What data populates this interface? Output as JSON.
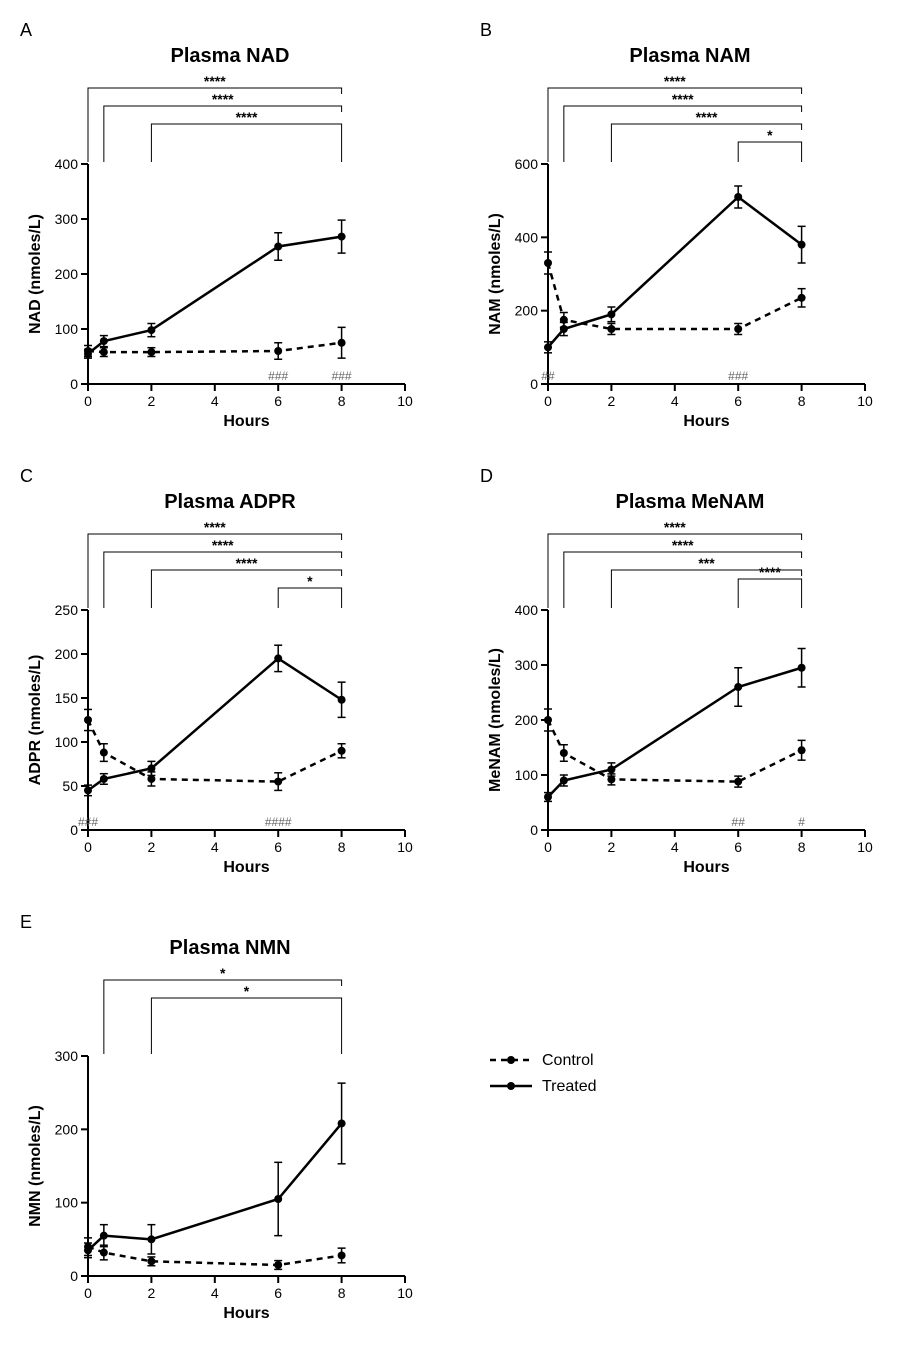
{
  "figure": {
    "background_color": "#ffffff",
    "panel_font": {
      "title_size": 20,
      "title_weight": 700,
      "letter_size": 18,
      "axis_label_size": 16,
      "tick_size": 14
    },
    "xlabel": "Hours",
    "xlim": [
      0,
      10
    ],
    "xticks": [
      0,
      2,
      4,
      6,
      8,
      10
    ],
    "xvals": [
      0,
      0.5,
      2,
      6,
      8
    ],
    "legend": {
      "items": [
        {
          "label": "Control",
          "style": "dashed",
          "marker": "circle"
        },
        {
          "label": "Treated",
          "style": "solid",
          "marker": "circle"
        }
      ]
    },
    "colors": {
      "line": "#000000",
      "hash": "#666666"
    },
    "panels": [
      {
        "id": "A",
        "title": "Plasma NAD",
        "ylabel": "NAD (nmoles/L)",
        "ylim": [
          0,
          400
        ],
        "yticks": [
          0,
          100,
          200,
          300,
          400
        ],
        "control": {
          "y": [
            60,
            58,
            58,
            60,
            75
          ],
          "err": [
            10,
            8,
            8,
            15,
            28
          ]
        },
        "treated": {
          "y": [
            55,
            78,
            98,
            250,
            268
          ],
          "err": [
            8,
            10,
            12,
            25,
            30
          ]
        },
        "sig_brackets": [
          {
            "from_x": 0,
            "to_x": 8,
            "label": "****",
            "level": 0
          },
          {
            "from_x": 0.5,
            "to_x": 8,
            "label": "****",
            "level": 1
          },
          {
            "from_x": 2,
            "to_x": 8,
            "label": "****",
            "level": 2
          }
        ],
        "hash_marks": [
          {
            "x": 6,
            "text": "###"
          },
          {
            "x": 8,
            "text": "###"
          }
        ]
      },
      {
        "id": "B",
        "title": "Plasma NAM",
        "ylabel": "NAM (nmoles/L)",
        "ylim": [
          0,
          600
        ],
        "yticks": [
          0,
          200,
          400,
          600
        ],
        "control": {
          "y": [
            330,
            175,
            150,
            150,
            235
          ],
          "err": [
            30,
            20,
            15,
            15,
            25
          ]
        },
        "treated": {
          "y": [
            100,
            150,
            190,
            510,
            380
          ],
          "err": [
            15,
            18,
            20,
            30,
            50
          ]
        },
        "sig_brackets": [
          {
            "from_x": 0,
            "to_x": 8,
            "label": "****",
            "level": 0
          },
          {
            "from_x": 0.5,
            "to_x": 8,
            "label": "****",
            "level": 1
          },
          {
            "from_x": 2,
            "to_x": 8,
            "label": "****",
            "level": 2
          },
          {
            "from_x": 6,
            "to_x": 8,
            "label": "*",
            "level": 3
          }
        ],
        "hash_marks": [
          {
            "x": 0,
            "text": "##"
          },
          {
            "x": 6,
            "text": "###"
          }
        ]
      },
      {
        "id": "C",
        "title": "Plasma ADPR",
        "ylabel": "ADPR (nmoles/L)",
        "ylim": [
          0,
          250
        ],
        "yticks": [
          0,
          50,
          100,
          150,
          200,
          250
        ],
        "control": {
          "y": [
            125,
            88,
            58,
            55,
            90
          ],
          "err": [
            12,
            10,
            8,
            10,
            8
          ]
        },
        "treated": {
          "y": [
            45,
            58,
            70,
            195,
            148
          ],
          "err": [
            6,
            6,
            8,
            15,
            20
          ]
        },
        "sig_brackets": [
          {
            "from_x": 0,
            "to_x": 8,
            "label": "****",
            "level": 0
          },
          {
            "from_x": 0.5,
            "to_x": 8,
            "label": "****",
            "level": 1
          },
          {
            "from_x": 2,
            "to_x": 8,
            "label": "****",
            "level": 2
          },
          {
            "from_x": 6,
            "to_x": 8,
            "label": "*",
            "level": 3
          }
        ],
        "hash_marks": [
          {
            "x": 0,
            "text": "###"
          },
          {
            "x": 6,
            "text": "####"
          }
        ]
      },
      {
        "id": "D",
        "title": "Plasma MeNAM",
        "ylabel": "MeNAM (nmoles/L)",
        "ylim": [
          0,
          400
        ],
        "yticks": [
          0,
          100,
          200,
          300,
          400
        ],
        "control": {
          "y": [
            200,
            140,
            92,
            88,
            145
          ],
          "err": [
            20,
            15,
            10,
            10,
            18
          ]
        },
        "treated": {
          "y": [
            60,
            90,
            110,
            260,
            295
          ],
          "err": [
            8,
            10,
            12,
            35,
            35
          ]
        },
        "sig_brackets": [
          {
            "from_x": 0,
            "to_x": 8,
            "label": "****",
            "level": 0
          },
          {
            "from_x": 0.5,
            "to_x": 8,
            "label": "****",
            "level": 1
          },
          {
            "from_x": 2,
            "to_x": 8,
            "label": "***",
            "level": 2
          },
          {
            "from_x": 6,
            "to_x": 8,
            "label": "****",
            "level": 2.5
          }
        ],
        "hash_marks": [
          {
            "x": 6,
            "text": "##"
          },
          {
            "x": 8,
            "text": "#"
          }
        ]
      },
      {
        "id": "E",
        "title": "Plasma NMN",
        "ylabel": "NMN (nmoles/L)",
        "ylim": [
          0,
          300
        ],
        "yticks": [
          0,
          100,
          200,
          300
        ],
        "control": {
          "y": [
            40,
            32,
            20,
            15,
            28
          ],
          "err": [
            12,
            10,
            6,
            6,
            10
          ]
        },
        "treated": {
          "y": [
            35,
            55,
            50,
            105,
            208
          ],
          "err": [
            10,
            15,
            20,
            50,
            55
          ]
        },
        "sig_brackets": [
          {
            "from_x": 0.5,
            "to_x": 8,
            "label": "*",
            "level": 0
          },
          {
            "from_x": 2,
            "to_x": 8,
            "label": "*",
            "level": 1
          }
        ],
        "hash_marks": []
      }
    ]
  }
}
